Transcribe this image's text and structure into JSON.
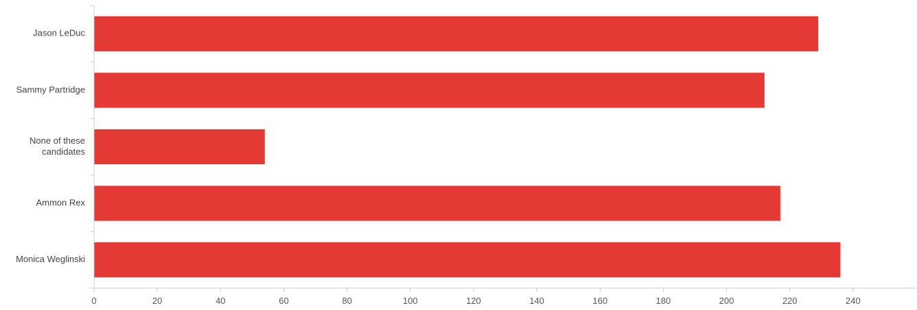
{
  "chart_data": {
    "type": "bar",
    "orientation": "horizontal",
    "categories": [
      "Jason LeDuc",
      "Sammy Partridge",
      "None of these candidates",
      "Ammon Rex",
      "Monica Weglinski"
    ],
    "category_label_lines": [
      [
        "Jason LeDuc"
      ],
      [
        "Sammy Partridge"
      ],
      [
        "None of these",
        "candidates"
      ],
      [
        "Ammon Rex"
      ],
      [
        "Monica Weglinski"
      ]
    ],
    "values": [
      229,
      212,
      54,
      217,
      236
    ],
    "xlim": [
      0,
      260
    ],
    "xticks": [
      0,
      20,
      40,
      60,
      80,
      100,
      120,
      140,
      160,
      180,
      200,
      220,
      240
    ],
    "grid": false,
    "legend": "none",
    "bar_color": "#e53935"
  }
}
